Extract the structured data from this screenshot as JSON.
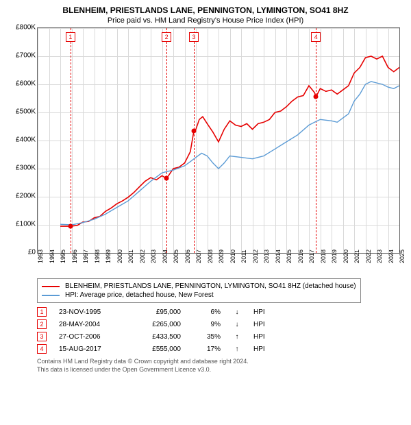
{
  "title": "BLENHEIM, PRIESTLANDS LANE, PENNINGTON, LYMINGTON, SO41 8HZ",
  "subtitle": "Price paid vs. HM Land Registry's House Price Index (HPI)",
  "chart": {
    "type": "line",
    "background_color": "#ffffff",
    "border_color": "#666666",
    "x": {
      "min": 1993,
      "max": 2025,
      "ticks": [
        1993,
        1994,
        1995,
        1996,
        1997,
        1998,
        1999,
        2000,
        2001,
        2002,
        2003,
        2004,
        2005,
        2006,
        2007,
        2008,
        2009,
        2010,
        2011,
        2012,
        2013,
        2014,
        2015,
        2016,
        2017,
        2018,
        2019,
        2020,
        2021,
        2022,
        2023,
        2024,
        2025
      ]
    },
    "y": {
      "min": 0,
      "max": 800000,
      "prefix": "£",
      "ticks": [
        0,
        100000,
        200000,
        300000,
        400000,
        500000,
        600000,
        700000,
        800000
      ],
      "tick_labels": [
        "£0",
        "£100K",
        "£200K",
        "£300K",
        "£400K",
        "£500K",
        "£600K",
        "£700K",
        "£800K"
      ]
    },
    "grid_color": "#d9d9d9",
    "x_tick_fontsize": 9,
    "y_tick_fontsize": 10,
    "series": [
      {
        "name": "BLENHEIM, PRIESTLANDS LANE, PENNINGTON, LYMINGTON, SO41 8HZ (detached house)",
        "color": "#e60000",
        "width": 1.6,
        "points": [
          [
            1995,
            95000
          ],
          [
            1995.9,
            95000
          ],
          [
            1996.5,
            98000
          ],
          [
            1997,
            110000
          ],
          [
            1997.5,
            112000
          ],
          [
            1998,
            125000
          ],
          [
            1998.5,
            130000
          ],
          [
            1999,
            148000
          ],
          [
            1999.5,
            160000
          ],
          [
            2000,
            175000
          ],
          [
            2000.5,
            185000
          ],
          [
            2001,
            198000
          ],
          [
            2001.5,
            215000
          ],
          [
            2002,
            235000
          ],
          [
            2002.5,
            255000
          ],
          [
            2003,
            268000
          ],
          [
            2003.5,
            260000
          ],
          [
            2004,
            275000
          ],
          [
            2004.4,
            265000
          ],
          [
            2005,
            300000
          ],
          [
            2005.5,
            305000
          ],
          [
            2006,
            320000
          ],
          [
            2006.5,
            360000
          ],
          [
            2006.82,
            433500
          ],
          [
            2007,
            440000
          ],
          [
            2007.3,
            475000
          ],
          [
            2007.6,
            485000
          ],
          [
            2008,
            460000
          ],
          [
            2008.5,
            430000
          ],
          [
            2009,
            395000
          ],
          [
            2009.5,
            440000
          ],
          [
            2010,
            470000
          ],
          [
            2010.5,
            455000
          ],
          [
            2011,
            450000
          ],
          [
            2011.5,
            460000
          ],
          [
            2012,
            440000
          ],
          [
            2012.5,
            460000
          ],
          [
            2013,
            465000
          ],
          [
            2013.5,
            475000
          ],
          [
            2014,
            500000
          ],
          [
            2014.5,
            505000
          ],
          [
            2015,
            520000
          ],
          [
            2015.5,
            540000
          ],
          [
            2016,
            555000
          ],
          [
            2016.5,
            560000
          ],
          [
            2017,
            595000
          ],
          [
            2017.5,
            570000
          ],
          [
            2017.62,
            555000
          ],
          [
            2018,
            585000
          ],
          [
            2018.5,
            575000
          ],
          [
            2019,
            580000
          ],
          [
            2019.5,
            565000
          ],
          [
            2020,
            580000
          ],
          [
            2020.5,
            595000
          ],
          [
            2021,
            640000
          ],
          [
            2021.5,
            660000
          ],
          [
            2022,
            695000
          ],
          [
            2022.5,
            700000
          ],
          [
            2023,
            690000
          ],
          [
            2023.5,
            700000
          ],
          [
            2024,
            660000
          ],
          [
            2024.5,
            645000
          ],
          [
            2025,
            660000
          ]
        ]
      },
      {
        "name": "HPI: Average price, detached house, New Forest",
        "color": "#5b9bd5",
        "width": 1.4,
        "points": [
          [
            1995,
            102000
          ],
          [
            1996,
            100000
          ],
          [
            1997,
            108000
          ],
          [
            1998,
            120000
          ],
          [
            1999,
            138000
          ],
          [
            2000,
            162000
          ],
          [
            2001,
            185000
          ],
          [
            2002,
            220000
          ],
          [
            2003,
            255000
          ],
          [
            2003.5,
            270000
          ],
          [
            2004,
            285000
          ],
          [
            2004.5,
            290000
          ],
          [
            2005,
            295000
          ],
          [
            2006,
            310000
          ],
          [
            2006.5,
            325000
          ],
          [
            2007,
            340000
          ],
          [
            2007.5,
            355000
          ],
          [
            2008,
            345000
          ],
          [
            2008.5,
            320000
          ],
          [
            2009,
            300000
          ],
          [
            2009.5,
            320000
          ],
          [
            2010,
            345000
          ],
          [
            2011,
            340000
          ],
          [
            2012,
            335000
          ],
          [
            2013,
            345000
          ],
          [
            2014,
            370000
          ],
          [
            2015,
            395000
          ],
          [
            2016,
            420000
          ],
          [
            2017,
            455000
          ],
          [
            2017.5,
            465000
          ],
          [
            2018,
            475000
          ],
          [
            2019,
            470000
          ],
          [
            2019.5,
            465000
          ],
          [
            2020,
            480000
          ],
          [
            2020.5,
            495000
          ],
          [
            2021,
            540000
          ],
          [
            2021.5,
            565000
          ],
          [
            2022,
            600000
          ],
          [
            2022.5,
            610000
          ],
          [
            2023,
            605000
          ],
          [
            2023.5,
            600000
          ],
          [
            2024,
            590000
          ],
          [
            2024.5,
            585000
          ],
          [
            2025,
            595000
          ]
        ]
      }
    ],
    "events": [
      {
        "n": 1,
        "year": 1995.9,
        "date": "23-NOV-1995",
        "price": 95000,
        "price_label": "£95,000",
        "pct": "6%",
        "dir": "↓",
        "color": "#e60000"
      },
      {
        "n": 2,
        "year": 2004.4,
        "date": "28-MAY-2004",
        "price": 265000,
        "price_label": "£265,000",
        "pct": "9%",
        "dir": "↓",
        "color": "#e60000"
      },
      {
        "n": 3,
        "year": 2006.82,
        "date": "27-OCT-2006",
        "price": 433500,
        "price_label": "£433,500",
        "pct": "35%",
        "dir": "↑",
        "color": "#e60000"
      },
      {
        "n": 4,
        "year": 2017.62,
        "date": "15-AUG-2017",
        "price": 555000,
        "price_label": "£555,000",
        "pct": "17%",
        "dir": "↑",
        "color": "#e60000"
      }
    ],
    "event_hpi_label": "HPI",
    "marker_top_offset": 6
  },
  "legend": {
    "border_color": "#888888",
    "fontsize": 10
  },
  "footer": {
    "line1": "Contains HM Land Registry data © Crown copyright and database right 2024.",
    "line2": "This data is licensed under the Open Government Licence v3.0."
  }
}
